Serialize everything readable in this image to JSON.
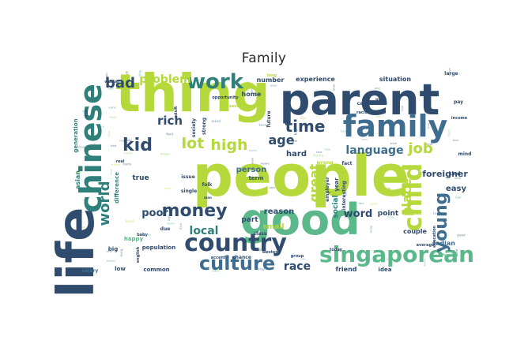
{
  "chart_data": {
    "type": "wordcloud",
    "title": "Family",
    "colors": [
      "#b5d93a",
      "#2f4b6e",
      "#2f7f7b",
      "#3f6d90",
      "#5bb88a",
      "#8fd16a",
      "#1f3a5c",
      "#4aa3a0"
    ],
    "words": [
      {
        "text": "people",
        "weight": 100,
        "color": "#b5d93a"
      },
      {
        "text": "parent",
        "weight": 70,
        "color": "#2f4b6e"
      },
      {
        "text": "thing",
        "weight": 66,
        "color": "#b5d93a"
      },
      {
        "text": "life",
        "weight": 64,
        "color": "#2f4b6e"
      },
      {
        "text": "good",
        "weight": 62,
        "color": "#5bb88a"
      },
      {
        "text": "family",
        "weight": 40,
        "color": "#3f6d90"
      },
      {
        "text": "chinese",
        "weight": 38,
        "color": "#2f7f7b"
      },
      {
        "text": "child",
        "weight": 33,
        "color": "#b5d93a"
      },
      {
        "text": "singaporean",
        "weight": 29,
        "color": "#5bb88a"
      },
      {
        "text": "country",
        "weight": 28,
        "color": "#2f4b6e"
      },
      {
        "text": "culture",
        "weight": 24,
        "color": "#3f6d90"
      },
      {
        "text": "work",
        "weight": 24,
        "color": "#2f7f7b"
      },
      {
        "text": "money",
        "weight": 22,
        "color": "#2f4b6e"
      },
      {
        "text": "kid",
        "weight": 22,
        "color": "#2f4b6e"
      },
      {
        "text": "young",
        "weight": 22,
        "color": "#3f6d90"
      },
      {
        "text": "time",
        "weight": 20,
        "color": "#2f4b6e"
      },
      {
        "text": "lot",
        "weight": 19,
        "color": "#b5d93a"
      },
      {
        "text": "high",
        "weight": 18,
        "color": "#b5d93a"
      },
      {
        "text": "world",
        "weight": 18,
        "color": "#2f7f7b"
      },
      {
        "text": "job",
        "weight": 18,
        "color": "#b5d93a"
      },
      {
        "text": "place",
        "weight": 17,
        "color": "#b5d93a"
      },
      {
        "text": "bad",
        "weight": 17,
        "color": "#2f4b6e"
      },
      {
        "text": "great",
        "weight": 16,
        "color": "#b5d93a"
      },
      {
        "text": "age",
        "weight": 15,
        "color": "#2f4b6e"
      },
      {
        "text": "rich",
        "weight": 14,
        "color": "#2f4b6e"
      },
      {
        "text": "problem",
        "weight": 14,
        "color": "#b5d93a"
      },
      {
        "text": "language",
        "weight": 14,
        "color": "#3f6d90"
      },
      {
        "text": "local",
        "weight": 14,
        "color": "#2f7f7b"
      },
      {
        "text": "race",
        "weight": 14,
        "color": "#2f4b6e"
      },
      {
        "text": "word",
        "weight": 13,
        "color": "#2f4b6e"
      },
      {
        "text": "poor",
        "weight": 13,
        "color": "#2f4b6e"
      },
      {
        "text": "foreigner",
        "weight": 11,
        "color": "#2f4b6e"
      },
      {
        "text": "hard",
        "weight": 10,
        "color": "#2f4b6e"
      },
      {
        "text": "easy",
        "weight": 10,
        "color": "#2f4b6e"
      },
      {
        "text": "person",
        "weight": 10,
        "color": "#3f6d90"
      },
      {
        "text": "reason",
        "weight": 10,
        "color": "#2f4b6e"
      },
      {
        "text": "social",
        "weight": 9,
        "color": "#2f7f7b"
      },
      {
        "text": "point",
        "weight": 9,
        "color": "#2f4b6e"
      },
      {
        "text": "part",
        "weight": 9,
        "color": "#2f4b6e"
      },
      {
        "text": "small",
        "weight": 9,
        "color": "#b5d93a"
      },
      {
        "text": "true",
        "weight": 9,
        "color": "#2f4b6e"
      },
      {
        "text": "asian",
        "weight": 8,
        "color": "#2f7f7b"
      },
      {
        "text": "indian",
        "weight": 8,
        "color": "#3f6d90"
      },
      {
        "text": "friend",
        "weight": 8,
        "color": "#2f4b6e"
      },
      {
        "text": "couple",
        "weight": 8,
        "color": "#2f4b6e"
      },
      {
        "text": "situation",
        "weight": 8,
        "color": "#2f4b6e"
      },
      {
        "text": "experience",
        "weight": 8,
        "color": "#2f4b6e"
      },
      {
        "text": "number",
        "weight": 8,
        "color": "#2f4b6e"
      },
      {
        "text": "home",
        "weight": 8,
        "color": "#2f4b6e"
      },
      {
        "text": "term",
        "weight": 7,
        "color": "#2f4b6e"
      },
      {
        "text": "year",
        "weight": 7,
        "color": "#2f4b6e"
      },
      {
        "text": "idea",
        "weight": 7,
        "color": "#2f4b6e"
      },
      {
        "text": "low",
        "weight": 7,
        "color": "#2f4b6e"
      },
      {
        "text": "common",
        "weight": 7,
        "color": "#2f4b6e"
      },
      {
        "text": "happy",
        "weight": 7,
        "color": "#5bb88a"
      },
      {
        "text": "big",
        "weight": 7,
        "color": "#2f4b6e"
      },
      {
        "text": "population",
        "weight": 7,
        "color": "#2f4b6e"
      },
      {
        "text": "generation",
        "weight": 7,
        "color": "#2f7f7b"
      },
      {
        "text": "difference",
        "weight": 7,
        "color": "#2f7f7b"
      },
      {
        "text": "issue",
        "weight": 6,
        "color": "#2f4b6e"
      },
      {
        "text": "interesting",
        "weight": 6,
        "color": "#2f4b6e"
      },
      {
        "text": "employer",
        "weight": 6,
        "color": "#2f4b6e"
      },
      {
        "text": "class",
        "weight": 6,
        "color": "#2f4b6e"
      },
      {
        "text": "future",
        "weight": 6,
        "color": "#2f4b6e"
      },
      {
        "text": "wrong",
        "weight": 6,
        "color": "#b5d93a"
      },
      {
        "text": "fact",
        "weight": 6,
        "color": "#2f4b6e"
      },
      {
        "text": "care",
        "weight": 6,
        "color": "#2f4b6e"
      },
      {
        "text": "kind",
        "weight": 6,
        "color": "#2f4b6e"
      },
      {
        "text": "mind",
        "weight": 6,
        "color": "#2f4b6e"
      },
      {
        "text": "pay",
        "weight": 6,
        "color": "#2f4b6e"
      },
      {
        "text": "large",
        "weight": 6,
        "color": "#2f4b6e"
      },
      {
        "text": "salary",
        "weight": 6,
        "color": "#3f6d90"
      },
      {
        "text": "due",
        "weight": 6,
        "color": "#2f4b6e"
      },
      {
        "text": "chance",
        "weight": 6,
        "color": "#2f4b6e"
      },
      {
        "text": "single",
        "weight": 6,
        "color": "#2f4b6e"
      },
      {
        "text": "folk",
        "weight": 6,
        "color": "#2f4b6e"
      },
      {
        "text": "society",
        "weight": 6,
        "color": "#2f4b6e"
      },
      {
        "text": "strong",
        "weight": 6,
        "color": "#2f4b6e"
      },
      {
        "text": "opportunity",
        "weight": 5,
        "color": "#2f4b6e"
      },
      {
        "text": "today",
        "weight": 5,
        "color": "#2f4b6e"
      },
      {
        "text": "western",
        "weight": 5,
        "color": "#2f4b6e"
      },
      {
        "text": "accent",
        "weight": 5,
        "color": "#2f4b6e"
      },
      {
        "text": "average",
        "weight": 5,
        "color": "#2f4b6e"
      },
      {
        "text": "education",
        "weight": 5,
        "color": "#2f4b6e"
      },
      {
        "text": "income",
        "weight": 5,
        "color": "#2f4b6e"
      },
      {
        "text": "adult",
        "weight": 5,
        "color": "#2f4b6e"
      },
      {
        "text": "foreign",
        "weight": 5,
        "color": "#5bb88a"
      },
      {
        "text": "choice",
        "weight": 5,
        "color": "#b5d93a"
      },
      {
        "text": "worker",
        "weight": 5,
        "color": "#2f4b6e"
      },
      {
        "text": "racist",
        "weight": 5,
        "color": "#2f4b6e"
      },
      {
        "text": "english",
        "weight": 5,
        "color": "#2f4b6e"
      },
      {
        "text": "baby",
        "weight": 5,
        "color": "#2f4b6e"
      },
      {
        "text": "sense",
        "weight": 5,
        "color": "#b5d93a"
      },
      {
        "text": "live",
        "weight": 5,
        "color": "#2f4b6e"
      },
      {
        "text": "real",
        "weight": 5,
        "color": "#2f4b6e"
      },
      {
        "text": "group",
        "weight": 5,
        "color": "#2f4b6e"
      },
      {
        "text": "long",
        "weight": 5,
        "color": "#b5d93a"
      },
      {
        "text": "man",
        "weight": 4,
        "color": "#2f4b6e"
      },
      {
        "text": "wage",
        "weight": 4,
        "color": "#2f4b6e"
      }
    ]
  }
}
